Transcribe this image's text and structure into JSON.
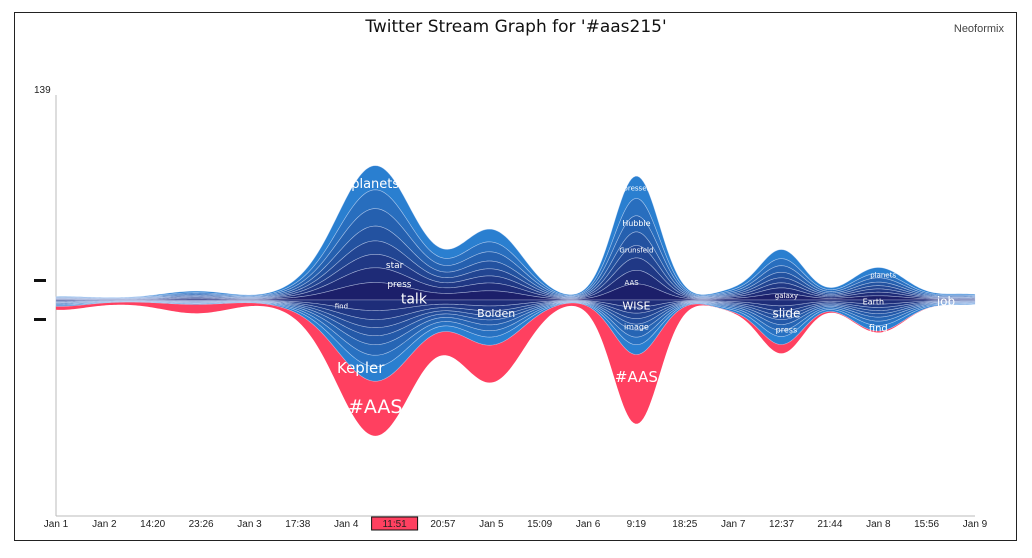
{
  "header": {
    "title": "Twitter Stream Graph for '#aas215'",
    "brand": "Neoformix"
  },
  "colors": {
    "red": "#ff4060",
    "blue_light": "#2a7fd0",
    "blue_dark": "#1c1f6a",
    "selected_tick": "#ff4060"
  },
  "chart_data": {
    "type": "area",
    "title": "Twitter Stream Graph for '#aas215'",
    "ymax_label": "139",
    "ylim": [
      0,
      139
    ],
    "x_ticks": [
      "Jan 1",
      "Jan 2",
      "14:20",
      "23:26",
      "Jan 3",
      "17:38",
      "Jan 4",
      "11:51",
      "20:57",
      "Jan 5",
      "15:09",
      "Jan 6",
      "9:19",
      "18:25",
      "Jan 7",
      "12:37",
      "21:44",
      "Jan 8",
      "15:56",
      "Jan 9"
    ],
    "selected_tick": "11:51",
    "peaks": [
      {
        "at": 0.0,
        "w": 0.03,
        "top": 2,
        "bottom": 4,
        "red": 2
      },
      {
        "at": 1.0,
        "w": 0.035,
        "top": 1,
        "bottom": 1,
        "red": 1
      },
      {
        "at": 2.9,
        "w": 0.04,
        "top": 6,
        "bottom": 3,
        "red": 6
      },
      {
        "at": 4.9,
        "w": 0.03,
        "top": 3,
        "bottom": 2,
        "red": 0
      },
      {
        "at": 6.6,
        "w": 0.042,
        "top": 91,
        "bottom": 55,
        "red": 37
      },
      {
        "at": 9.0,
        "w": 0.035,
        "top": 47,
        "bottom": 30,
        "red": 25
      },
      {
        "at": 12.0,
        "w": 0.025,
        "top": 84,
        "bottom": 37,
        "red": 47
      },
      {
        "at": 13.9,
        "w": 0.022,
        "top": 5,
        "bottom": 5,
        "red": 0
      },
      {
        "at": 15.0,
        "w": 0.025,
        "top": 34,
        "bottom": 30,
        "red": 6
      },
      {
        "at": 17.0,
        "w": 0.03,
        "top": 22,
        "bottom": 21,
        "red": 1
      },
      {
        "at": 18.8,
        "w": 0.03,
        "top": 4,
        "bottom": 3,
        "red": 0
      }
    ],
    "labels": [
      {
        "text": "planets",
        "at": 6.6,
        "y": 79,
        "size": 13
      },
      {
        "text": "star",
        "at": 7.0,
        "y": 24,
        "size": 9
      },
      {
        "text": "press",
        "at": 7.1,
        "y": 11,
        "size": 9
      },
      {
        "text": "talk",
        "at": 7.4,
        "y": 1,
        "size": 14
      },
      {
        "text": "find",
        "at": 5.9,
        "y": -4,
        "size": 7
      },
      {
        "text": "Kepler",
        "at": 6.3,
        "y": -46,
        "size": 15
      },
      {
        "text": "#AAS",
        "at": 6.6,
        "y": -72,
        "size": 19
      },
      {
        "text": "Bolden",
        "at": 9.1,
        "y": -9,
        "size": 11
      },
      {
        "text": "presser",
        "at": 12.0,
        "y": 76,
        "size": 7
      },
      {
        "text": "Hubble",
        "at": 12.0,
        "y": 52,
        "size": 8
      },
      {
        "text": "Grunsfeld",
        "at": 12.0,
        "y": 34,
        "size": 7
      },
      {
        "text": "AAS",
        "at": 11.9,
        "y": 12,
        "size": 7
      },
      {
        "text": "WISE",
        "at": 12.0,
        "y": -4,
        "size": 11
      },
      {
        "text": "image",
        "at": 12.0,
        "y": -18,
        "size": 8
      },
      {
        "text": "#AAS",
        "at": 12.0,
        "y": -52,
        "size": 15
      },
      {
        "text": "galaxy",
        "at": 15.1,
        "y": 3,
        "size": 7
      },
      {
        "text": "slide",
        "at": 15.1,
        "y": -9,
        "size": 12
      },
      {
        "text": "press",
        "at": 15.1,
        "y": -20,
        "size": 8
      },
      {
        "text": "planets",
        "at": 17.1,
        "y": 17,
        "size": 7
      },
      {
        "text": "Earth",
        "at": 16.9,
        "y": -1,
        "size": 8
      },
      {
        "text": "job",
        "at": 18.4,
        "y": -1,
        "size": 12
      },
      {
        "text": "find",
        "at": 17.0,
        "y": -19,
        "size": 10
      }
    ]
  }
}
